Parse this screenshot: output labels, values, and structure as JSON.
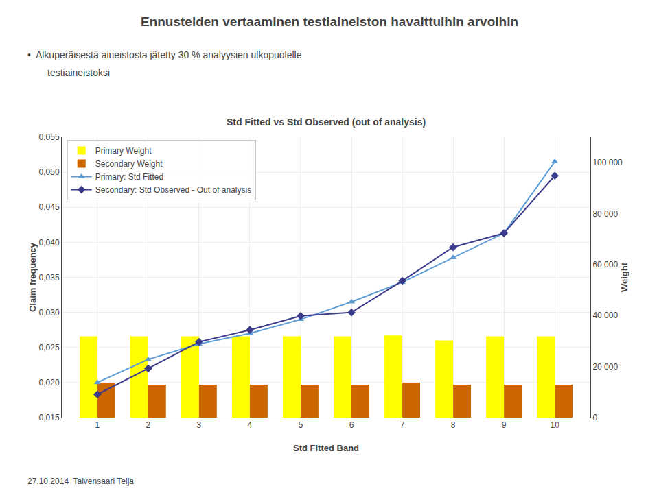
{
  "chart_data": {
    "type": "bar",
    "suptitle": "Ennusteiden vertaaminen testiaineiston havaittuihin arvoihin",
    "subtitle": [
      "•  Alkuperäisestä aineistosta jätetty 30 % analyysien ulkopuolelle",
      "testiaineistoksi"
    ],
    "title": "Std Fitted vs Std Observed (out of analysis)",
    "footer": "27.10.2014  Talvensaari Teija",
    "xlabel": "Std Fitted Band",
    "ylabel": "Claim frequency",
    "y2label": "Weight",
    "x": [
      1,
      2,
      3,
      4,
      5,
      6,
      7,
      8,
      9,
      10
    ],
    "series": [
      {
        "name": "Primary Weight",
        "type": "bar",
        "color": "#FFFF00",
        "values": [
          0.0266,
          0.0266,
          0.0266,
          0.0266,
          0.0266,
          0.0266,
          0.0267,
          0.026,
          0.0266,
          0.0266
        ]
      },
      {
        "name": "Secondary Weight",
        "type": "bar",
        "color": "#CC6600",
        "values": [
          0.02,
          0.0197,
          0.0197,
          0.0197,
          0.0197,
          0.0197,
          0.02,
          0.0197,
          0.0197,
          0.0197
        ]
      },
      {
        "name": "Primary: Std Fitted",
        "type": "line",
        "color": "#5B9BD5",
        "marker": "triangle-up",
        "values": [
          0.02,
          0.0233,
          0.0255,
          0.027,
          0.029,
          0.0315,
          0.0343,
          0.0378,
          0.0413,
          0.0515
        ]
      },
      {
        "name": "Secondary: Std Observed - Out of analysis",
        "type": "line",
        "color": "#3B3B8C",
        "marker": "diamond",
        "values": [
          0.0183,
          0.022,
          0.0258,
          0.0275,
          0.0295,
          0.03,
          0.0345,
          0.0393,
          0.0413,
          0.0495
        ]
      }
    ],
    "xlim": [
      0.3,
      10.7
    ],
    "xticks": [
      1,
      2,
      3,
      4,
      5,
      6,
      7,
      8,
      9,
      10
    ],
    "ylim": [
      0.015,
      0.055
    ],
    "yticks": [
      {
        "value": 0.015,
        "label": "0,015"
      },
      {
        "value": 0.02,
        "label": "0,020"
      },
      {
        "value": 0.025,
        "label": "0,025"
      },
      {
        "value": 0.03,
        "label": "0,030"
      },
      {
        "value": 0.035,
        "label": "0,035"
      },
      {
        "value": 0.04,
        "label": "0,040"
      },
      {
        "value": 0.045,
        "label": "0,045"
      },
      {
        "value": 0.05,
        "label": "0,050"
      },
      {
        "value": 0.055,
        "label": "0,055"
      }
    ],
    "y2lim": [
      0,
      110000
    ],
    "y2ticks": [
      0,
      {
        "value": 20000,
        "label": "20 000"
      },
      {
        "value": 40000,
        "label": "40 000"
      },
      {
        "value": 60000,
        "label": "60 000"
      },
      {
        "value": 80000,
        "label": "80 000"
      },
      {
        "value": 100000,
        "label": "100 000"
      }
    ],
    "grid": true,
    "legend": "upper left"
  }
}
